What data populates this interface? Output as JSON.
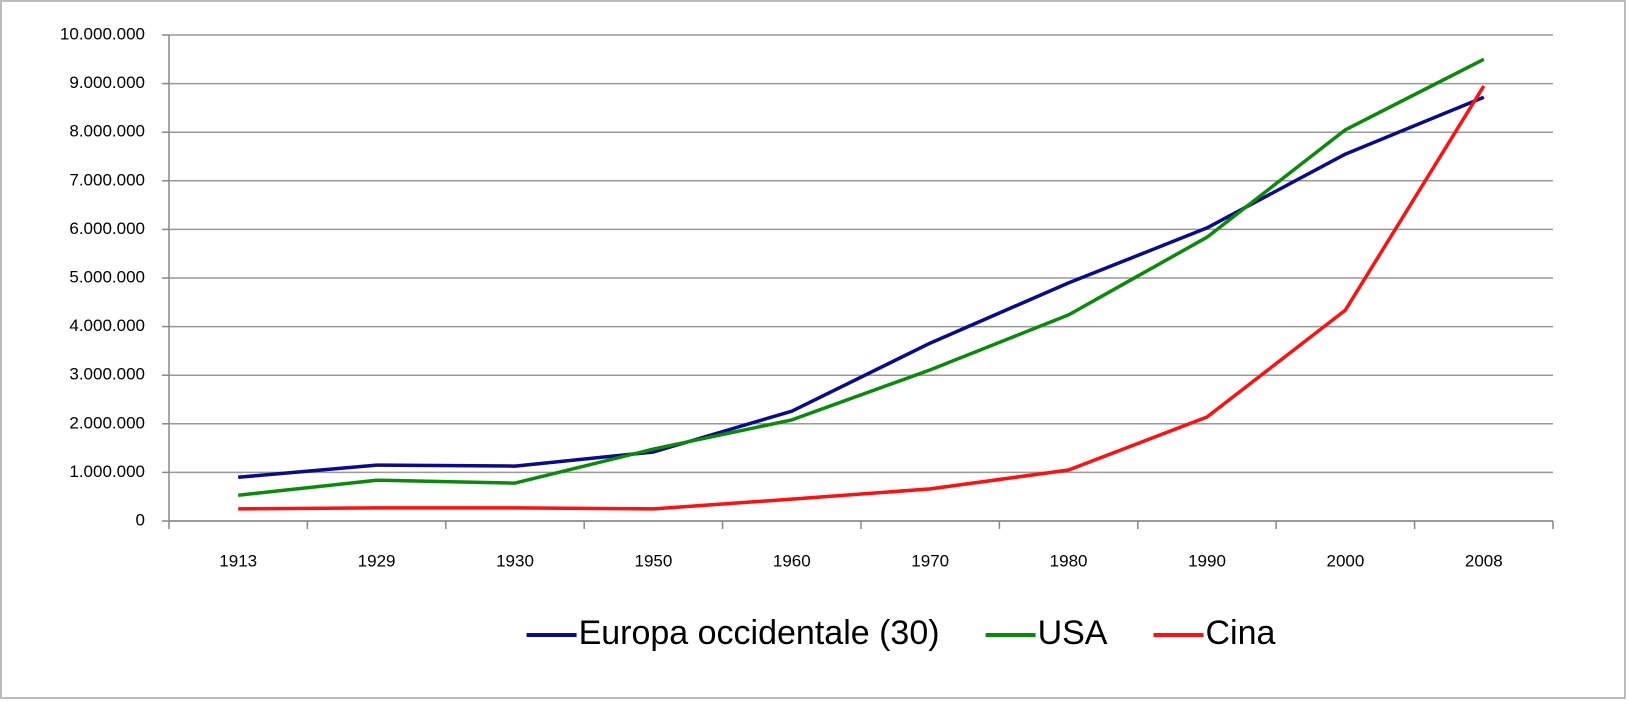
{
  "chart_data": {
    "type": "line",
    "categories": [
      "1913",
      "1929",
      "1930",
      "1950",
      "1960",
      "1970",
      "1980",
      "1990",
      "2000",
      "2008"
    ],
    "series": [
      {
        "name": "Europa occidentale (30)",
        "color": "#0a0a8c",
        "values": [
          900000,
          1150000,
          1130000,
          1420000,
          2260000,
          3660000,
          4900000,
          6030000,
          7550000,
          8720000
        ]
      },
      {
        "name": "USA",
        "color": "#0a8a0a",
        "values": [
          530000,
          840000,
          780000,
          1480000,
          2080000,
          3110000,
          4240000,
          5840000,
          8050000,
          9500000
        ]
      },
      {
        "name": "Cina",
        "color": "#ff1010",
        "values": [
          250000,
          270000,
          270000,
          250000,
          450000,
          660000,
          1050000,
          2140000,
          4340000,
          8950000
        ]
      }
    ],
    "ylim": [
      0,
      10000000
    ],
    "yticks": [
      0,
      {
        "value": 1000000,
        "label": "1.000.000"
      },
      {
        "value": 2000000,
        "label": "2.000.000"
      },
      {
        "value": 3000000,
        "label": "3.000.000"
      },
      {
        "value": 4000000,
        "label": "4.000.000"
      },
      {
        "value": 5000000,
        "label": "5.000.000"
      },
      {
        "value": 6000000,
        "label": "6.000.000"
      },
      {
        "value": 7000000,
        "label": "7.000.000"
      },
      {
        "value": 8000000,
        "label": "8.000.000"
      },
      {
        "value": 9000000,
        "label": "9.000.000"
      },
      {
        "value": 10000000,
        "label": "10.000.000"
      }
    ],
    "grid": true,
    "legend": "bottom"
  }
}
